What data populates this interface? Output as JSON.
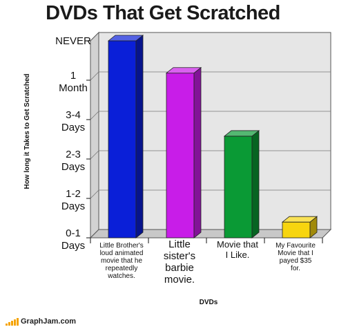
{
  "brand": {
    "name": "GraphJam.com",
    "icon": "bar-chart-logo-icon",
    "accent": "#f5a300"
  },
  "chart_data": {
    "type": "bar",
    "title": "DVDs That  Get Scratched",
    "xlabel": "DVDs",
    "ylabel": "How long it Takes to Get Scratched",
    "y_ticks": [
      [
        "0-1",
        "Days"
      ],
      [
        "1-2",
        "Days"
      ],
      [
        "2-3",
        "Days"
      ],
      [
        "3-4",
        "Days"
      ],
      [
        "1",
        "Month"
      ],
      [
        "NEVER"
      ]
    ],
    "ylim": [
      0,
      5
    ],
    "grid": true,
    "legend": "none",
    "categories": [
      [
        "Little Brother's",
        "loud animated",
        "movie that he",
        "repeatedly",
        "watches."
      ],
      [
        "Little",
        "sister's",
        "barbie",
        "movie."
      ],
      [
        "Movie that",
        "I Like."
      ],
      [
        "My Favourite",
        "Movie that I",
        "payed $35",
        "for."
      ]
    ],
    "values": [
      5.0,
      4.18,
      2.58,
      0.4
    ],
    "colors": [
      "#0a1fd8",
      "#c81de8",
      "#0a9a35",
      "#f7d50f"
    ]
  }
}
